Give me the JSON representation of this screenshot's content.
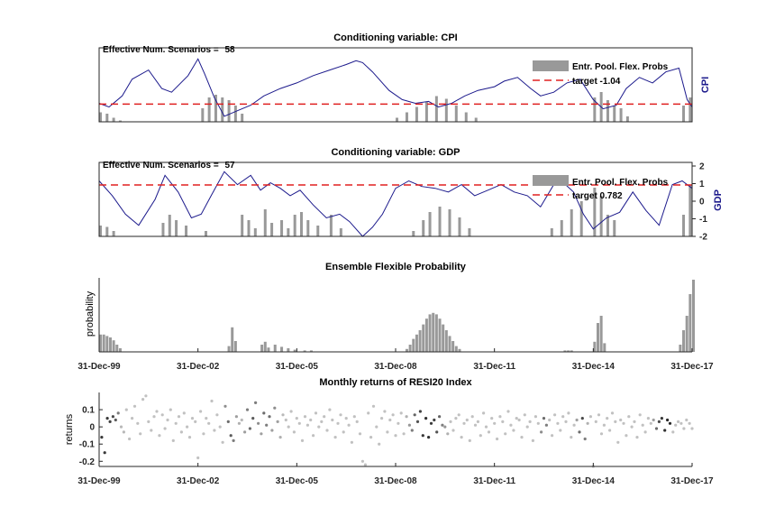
{
  "chart_data": [
    {
      "type": "line",
      "title": "Conditioning variable: CPI",
      "annotation_label": "Effective Num. Scenarios = ",
      "annotation_value": "58",
      "ylabel_right": "CPI",
      "target_value": -1.04,
      "legend": [
        "Entr. Pool. Flex. Probs",
        "target -1.04"
      ],
      "ylim": [
        -2,
        2
      ],
      "x_range": [
        2000,
        2018
      ],
      "series": [
        {
          "name": "CPI",
          "x": [
            2000,
            2000.3,
            2000.7,
            2001,
            2001.5,
            2001.9,
            2002.2,
            2002.7,
            2003,
            2003.2,
            2003.5,
            2003.8,
            2004.2,
            2004.6,
            2005.0,
            2005.5,
            2006,
            2006.5,
            2007,
            2007.5,
            2007.8,
            2008.0,
            2008.3,
            2008.8,
            2009.2,
            2009.6,
            2010.0,
            2010.3,
            2010.7,
            2011.1,
            2011.5,
            2012,
            2012.3,
            2012.7,
            2013.1,
            2013.4,
            2013.8,
            2014.2,
            2014.6,
            2015.0,
            2015.3,
            2015.7,
            2016.0,
            2016.4,
            2016.8,
            2017.2,
            2017.6,
            2017.85,
            2018
          ],
          "values": [
            -1.0,
            -1.2,
            -0.6,
            0.3,
            0.8,
            -0.2,
            -0.4,
            0.5,
            1.4,
            0.6,
            -0.7,
            -1.7,
            -1.4,
            -1.1,
            -0.6,
            -0.2,
            0.1,
            0.5,
            0.8,
            1.1,
            1.3,
            1.2,
            0.7,
            -0.3,
            -0.8,
            -1.0,
            -0.9,
            -1.2,
            -1.0,
            -0.6,
            -0.3,
            -0.1,
            0.2,
            0.4,
            -0.2,
            -0.6,
            -0.4,
            0.1,
            0.3,
            -0.8,
            -1.3,
            -1.1,
            -0.2,
            0.4,
            0.1,
            0.7,
            0.9,
            -0.8,
            -1.2
          ]
        },
        {
          "name": "Entr. Pool. Flex. Probs",
          "x": [
            2000,
            2000.2,
            2000.4,
            2000.6,
            2003.1,
            2003.3,
            2003.5,
            2003.7,
            2003.9,
            2004.1,
            2004.3,
            2009.0,
            2009.3,
            2009.6,
            2009.9,
            2010.2,
            2010.5,
            2010.8,
            2011.1,
            2011.4,
            2015.0,
            2015.2,
            2015.4,
            2015.6,
            2015.8,
            2016.0,
            2017.7,
            2017.9
          ],
          "values": [
            0.35,
            0.3,
            0.15,
            0.05,
            0.5,
            0.9,
            1.0,
            0.9,
            0.8,
            0.6,
            0.3,
            0.15,
            0.35,
            0.55,
            0.75,
            0.95,
            0.85,
            0.6,
            0.35,
            0.15,
            0.9,
            1.1,
            0.8,
            0.6,
            0.5,
            0.2,
            0.6,
            0.9
          ]
        }
      ]
    },
    {
      "type": "line",
      "title": "Conditioning variable: GDP",
      "annotation_label": "Effective Num. Scenarios = ",
      "annotation_value": "57",
      "ylabel_right": "GDP",
      "target_value": 0.782,
      "legend": [
        "Entr. Pool. Flex. Probs",
        "target 0.782"
      ],
      "ylim": [
        -2,
        2
      ],
      "yticks": [
        "2",
        "1",
        "0",
        "-1",
        "-2"
      ],
      "x_range": [
        2000,
        2018
      ],
      "series": [
        {
          "name": "GDP",
          "x": [
            2000,
            2000.4,
            2000.8,
            2001.2,
            2001.7,
            2002.0,
            2002.4,
            2002.8,
            2003.1,
            2003.4,
            2003.8,
            2004.2,
            2004.6,
            2004.9,
            2005.2,
            2005.5,
            2005.8,
            2006.1,
            2006.5,
            2006.9,
            2007.3,
            2007.6,
            2008.0,
            2008.3,
            2008.6,
            2009.0,
            2009.4,
            2009.8,
            2010.2,
            2010.6,
            2011.0,
            2011.4,
            2011.8,
            2012.2,
            2012.6,
            2013.0,
            2013.4,
            2013.8,
            2014.1,
            2014.4,
            2014.7,
            2015.0,
            2015.4,
            2015.8,
            2016.2,
            2016.6,
            2017.0,
            2017.4,
            2017.7,
            2018.0
          ],
          "values": [
            1.0,
            0.2,
            -0.8,
            -1.4,
            0.0,
            1.3,
            0.4,
            -1.0,
            -0.8,
            0.2,
            1.5,
            0.8,
            1.3,
            0.5,
            0.9,
            0.6,
            0.2,
            0.5,
            -0.3,
            -1.0,
            -0.8,
            -1.2,
            -2.0,
            -1.5,
            -0.8,
            0.6,
            1.0,
            0.7,
            0.6,
            0.4,
            0.8,
            0.2,
            0.5,
            0.8,
            0.4,
            0.2,
            -0.4,
            0.8,
            0.9,
            0.4,
            -0.8,
            -1.6,
            -1.0,
            -0.7,
            0.4,
            -0.6,
            -1.4,
            0.8,
            1.0,
            0.6
          ]
        },
        {
          "name": "Entr. Pool. Flex. Probs",
          "x": [
            2000,
            2000.2,
            2000.4,
            2001.9,
            2002.1,
            2002.3,
            2002.6,
            2003.2,
            2004.3,
            2004.5,
            2004.7,
            2005.0,
            2005.2,
            2005.5,
            2005.7,
            2005.9,
            2006.1,
            2006.3,
            2006.6,
            2007.0,
            2007.3,
            2009.5,
            2009.8,
            2010.0,
            2010.3,
            2010.6,
            2010.9,
            2011.2,
            2013.7,
            2014.0,
            2014.3,
            2014.6,
            2015.0,
            2015.2,
            2015.4,
            2015.6,
            2017.7,
            2017.9
          ],
          "values": [
            0.4,
            0.35,
            0.2,
            0.5,
            0.8,
            0.6,
            0.4,
            0.2,
            0.8,
            0.6,
            0.3,
            1.0,
            0.5,
            0.6,
            0.3,
            0.8,
            0.9,
            0.6,
            0.4,
            0.8,
            0.3,
            0.2,
            0.6,
            0.9,
            1.1,
            1.0,
            0.7,
            0.3,
            0.3,
            0.6,
            1.0,
            1.3,
            1.8,
            1.5,
            0.8,
            0.6,
            0.8,
            1.9
          ]
        }
      ]
    },
    {
      "type": "bar",
      "title": "Ensemble Flexible Probability",
      "ylabel": "probability",
      "xticks": [
        "31-Dec-99",
        "31-Dec-02",
        "31-Dec-05",
        "31-Dec-08",
        "31-Dec-11",
        "31-Dec-14",
        "31-Dec-17"
      ],
      "x_range": [
        2000,
        2018
      ],
      "x": [
        2000.0,
        2000.1,
        2000.2,
        2000.3,
        2000.4,
        2000.5,
        2000.6,
        2003.9,
        2004.0,
        2004.1,
        2004.9,
        2005.0,
        2005.1,
        2005.3,
        2005.5,
        2005.7,
        2005.9,
        2006.2,
        2006.4,
        2009.3,
        2009.4,
        2009.5,
        2009.6,
        2009.7,
        2009.8,
        2009.9,
        2010.0,
        2010.1,
        2010.2,
        2010.3,
        2010.4,
        2010.5,
        2010.6,
        2010.7,
        2010.8,
        2010.9,
        2014.1,
        2014.2,
        2014.3,
        2015.0,
        2015.1,
        2015.2,
        2015.3,
        2017.6,
        2017.7,
        2017.8,
        2017.9,
        2018.0
      ],
      "values": [
        0.24,
        0.24,
        0.22,
        0.2,
        0.16,
        0.1,
        0.05,
        0.08,
        0.34,
        0.15,
        0.1,
        0.14,
        0.06,
        0.1,
        0.07,
        0.05,
        0.03,
        0.02,
        0.02,
        0.04,
        0.1,
        0.18,
        0.24,
        0.3,
        0.38,
        0.46,
        0.52,
        0.54,
        0.52,
        0.46,
        0.38,
        0.3,
        0.22,
        0.15,
        0.08,
        0.04,
        0.02,
        0.02,
        0.02,
        0.14,
        0.4,
        0.5,
        0.12,
        0.1,
        0.3,
        0.5,
        0.8,
        1.0
      ]
    },
    {
      "type": "scatter",
      "title": "Monthly returns of RESI20 Index",
      "ylabel": "returns",
      "yticks": [
        "0.1",
        "0",
        "-0.1",
        "-0.2"
      ],
      "xticks": [
        "31-Dec-99",
        "31-Dec-02",
        "31-Dec-05",
        "31-Dec-08",
        "31-Dec-11",
        "31-Dec-14",
        "31-Dec-17"
      ],
      "x_range": [
        2000,
        2018
      ],
      "ylim": [
        -0.23,
        0.2
      ],
      "x": [
        2000.08,
        2000.17,
        2000.25,
        2000.33,
        2000.42,
        2000.5,
        2000.58,
        2000.67,
        2000.75,
        2000.83,
        2000.92,
        2001.0,
        2001.08,
        2001.17,
        2001.25,
        2001.33,
        2001.42,
        2001.5,
        2001.58,
        2001.67,
        2001.75,
        2001.83,
        2001.92,
        2002.0,
        2002.08,
        2002.17,
        2002.25,
        2002.33,
        2002.42,
        2002.5,
        2002.58,
        2002.67,
        2002.75,
        2002.83,
        2002.92,
        2003.0,
        2003.08,
        2003.17,
        2003.25,
        2003.33,
        2003.42,
        2003.5,
        2003.58,
        2003.67,
        2003.75,
        2003.83,
        2003.92,
        2004.0,
        2004.08,
        2004.17,
        2004.25,
        2004.33,
        2004.42,
        2004.5,
        2004.58,
        2004.67,
        2004.75,
        2004.83,
        2004.92,
        2005.0,
        2005.08,
        2005.17,
        2005.25,
        2005.33,
        2005.42,
        2005.5,
        2005.58,
        2005.67,
        2005.75,
        2005.83,
        2005.92,
        2006.0,
        2006.08,
        2006.17,
        2006.25,
        2006.33,
        2006.42,
        2006.5,
        2006.58,
        2006.67,
        2006.75,
        2006.83,
        2006.92,
        2007.0,
        2007.08,
        2007.17,
        2007.25,
        2007.33,
        2007.42,
        2007.5,
        2007.58,
        2007.67,
        2007.75,
        2007.83,
        2007.92,
        2008.0,
        2008.08,
        2008.17,
        2008.25,
        2008.33,
        2008.42,
        2008.5,
        2008.58,
        2008.67,
        2008.75,
        2008.83,
        2008.92,
        2009.0,
        2009.08,
        2009.17,
        2009.25,
        2009.33,
        2009.42,
        2009.5,
        2009.58,
        2009.67,
        2009.75,
        2009.83,
        2009.92,
        2010.0,
        2010.08,
        2010.17,
        2010.25,
        2010.33,
        2010.42,
        2010.5,
        2010.58,
        2010.67,
        2010.75,
        2010.83,
        2010.92,
        2011.0,
        2011.08,
        2011.17,
        2011.25,
        2011.33,
        2011.42,
        2011.5,
        2011.58,
        2011.67,
        2011.75,
        2011.83,
        2011.92,
        2012.0,
        2012.08,
        2012.17,
        2012.25,
        2012.33,
        2012.42,
        2012.5,
        2012.58,
        2012.67,
        2012.75,
        2012.83,
        2012.92,
        2013.0,
        2013.08,
        2013.17,
        2013.25,
        2013.33,
        2013.42,
        2013.5,
        2013.58,
        2013.67,
        2013.75,
        2013.83,
        2013.92,
        2014.0,
        2014.08,
        2014.17,
        2014.25,
        2014.33,
        2014.42,
        2014.5,
        2014.58,
        2014.67,
        2014.75,
        2014.83,
        2014.92,
        2015.0,
        2015.08,
        2015.17,
        2015.25,
        2015.33,
        2015.42,
        2015.5,
        2015.58,
        2015.67,
        2015.75,
        2015.83,
        2015.92,
        2016.0,
        2016.08,
        2016.17,
        2016.25,
        2016.33,
        2016.42,
        2016.5,
        2016.58,
        2016.67,
        2016.75,
        2016.83,
        2016.92,
        2017.0,
        2017.08,
        2017.17,
        2017.25,
        2017.33,
        2017.42,
        2017.5,
        2017.58,
        2017.67,
        2017.75,
        2017.83,
        2017.92,
        2018.0
      ],
      "values": [
        -0.06,
        -0.15,
        0.05,
        0.03,
        0.06,
        0.04,
        0.08,
        0.0,
        -0.03,
        0.1,
        -0.07,
        0.05,
        0.12,
        0.02,
        -0.04,
        0.16,
        0.18,
        0.03,
        -0.02,
        0.06,
        0.09,
        -0.05,
        0.07,
        -0.01,
        0.04,
        0.1,
        -0.08,
        0.02,
        0.06,
        -0.03,
        0.08,
        0.0,
        -0.06,
        0.05,
        0.03,
        -0.18,
        0.09,
        -0.04,
        0.05,
        0.02,
        0.15,
        -0.02,
        0.07,
        0.0,
        -0.09,
        0.12,
        0.03,
        -0.05,
        -0.08,
        0.06,
        0.02,
        0.04,
        -0.03,
        0.1,
        -0.01,
        0.05,
        0.14,
        0.02,
        -0.04,
        0.08,
        0.01,
        0.06,
        -0.02,
        0.11,
        0.03,
        -0.06,
        0.07,
        0.04,
        0.0,
        0.09,
        -0.03,
        0.05,
        0.02,
        -0.08,
        0.06,
        0.01,
        0.04,
        -0.05,
        0.08,
        0.0,
        0.03,
        0.06,
        -0.02,
        0.1,
        0.04,
        -0.06,
        0.02,
        0.07,
        -0.03,
        0.05,
        0.01,
        -0.09,
        0.06,
        0.03,
        -0.04,
        -0.2,
        -0.22,
        0.08,
        -0.06,
        0.12,
        0.0,
        -0.1,
        0.05,
        0.09,
        -0.03,
        0.04,
        0.07,
        -0.05,
        0.02,
        0.08,
        -0.04,
        0.06,
        0.01,
        -0.02,
        0.07,
        0.03,
        0.09,
        -0.05,
        0.05,
        -0.06,
        0.02,
        0.04,
        -0.03,
        0.06,
        0.01,
        0.0,
        -0.04,
        0.03,
        -0.02,
        0.05,
        0.07,
        -0.06,
        0.02,
        0.04,
        -0.08,
        0.06,
        0.01,
        0.03,
        -0.05,
        0.08,
        0.0,
        -0.03,
        0.05,
        0.02,
        -0.07,
        0.06,
        0.03,
        -0.04,
        0.09,
        0.01,
        -0.02,
        0.05,
        0.04,
        -0.06,
        0.07,
        0.0,
        0.03,
        -0.08,
        0.06,
        0.02,
        -0.03,
        0.05,
        0.01,
        0.04,
        -0.05,
        0.07,
        0.02,
        -0.02,
        0.06,
        0.03,
        0.08,
        -0.06,
        0.01,
        0.04,
        -0.03,
        0.05,
        -0.07,
        0.02,
        0.06,
        -0.23,
        0.03,
        0.07,
        -0.04,
        0.01,
        0.05,
        -0.02,
        0.08,
        0.03,
        -0.09,
        0.04,
        0.02,
        -0.05,
        0.06,
        0.0,
        0.03,
        -0.06,
        0.07,
        0.01,
        -0.03,
        0.05,
        0.02,
        0.04,
        -0.01,
        0.03,
        0.05,
        -0.02,
        0.04,
        0.02,
        -0.03,
        0.01,
        0.03,
        0.02,
        -0.01,
        0.04,
        0.02,
        -0.01
      ],
      "weights": [
        0.9,
        0.9,
        0.9,
        0.85,
        0.8,
        0.7,
        0.5,
        0.15,
        0.15,
        0.1,
        0.1,
        0.1,
        0.1,
        0.1,
        0.1,
        0.1,
        0.1,
        0.1,
        0.1,
        0.1,
        0.1,
        0.1,
        0.1,
        0.1,
        0.1,
        0.1,
        0.1,
        0.1,
        0.1,
        0.1,
        0.1,
        0.1,
        0.1,
        0.1,
        0.1,
        0.1,
        0.1,
        0.1,
        0.1,
        0.1,
        0.1,
        0.1,
        0.1,
        0.1,
        0.1,
        0.4,
        0.6,
        0.7,
        0.5,
        0.3,
        0.2,
        0.15,
        0.3,
        0.5,
        0.6,
        0.7,
        0.5,
        0.4,
        0.3,
        0.6,
        0.5,
        0.6,
        0.3,
        0.4,
        0.3,
        0.2,
        0.15,
        0.1,
        0.1,
        0.1,
        0.1,
        0.1,
        0.1,
        0.1,
        0.1,
        0.1,
        0.1,
        0.1,
        0.1,
        0.1,
        0.1,
        0.1,
        0.1,
        0.1,
        0.1,
        0.1,
        0.1,
        0.1,
        0.1,
        0.1,
        0.1,
        0.1,
        0.1,
        0.1,
        0.1,
        0.1,
        0.1,
        0.1,
        0.1,
        0.1,
        0.1,
        0.1,
        0.1,
        0.1,
        0.1,
        0.1,
        0.1,
        0.1,
        0.1,
        0.1,
        0.1,
        0.2,
        0.35,
        0.5,
        0.65,
        0.75,
        0.85,
        0.9,
        0.95,
        0.95,
        0.9,
        0.85,
        0.75,
        0.65,
        0.5,
        0.35,
        0.2,
        0.1,
        0.1,
        0.1,
        0.1,
        0.1,
        0.1,
        0.1,
        0.1,
        0.1,
        0.1,
        0.1,
        0.1,
        0.1,
        0.1,
        0.1,
        0.1,
        0.1,
        0.1,
        0.1,
        0.1,
        0.1,
        0.1,
        0.1,
        0.1,
        0.1,
        0.1,
        0.1,
        0.1,
        0.1,
        0.1,
        0.1,
        0.1,
        0.1,
        0.4,
        0.6,
        0.5,
        0.1,
        0.1,
        0.1,
        0.1,
        0.1,
        0.1,
        0.1,
        0.1,
        0.1,
        0.1,
        0.3,
        0.6,
        0.8,
        0.5,
        0.2,
        0.1,
        0.1,
        0.1,
        0.1,
        0.1,
        0.1,
        0.1,
        0.1,
        0.1,
        0.1,
        0.1,
        0.1,
        0.1,
        0.1,
        0.1,
        0.1,
        0.1,
        0.1,
        0.1,
        0.1,
        0.1,
        0.1,
        0.1,
        0.3,
        0.6,
        0.8,
        0.9,
        0.95,
        1.0,
        1.0
      ]
    }
  ]
}
